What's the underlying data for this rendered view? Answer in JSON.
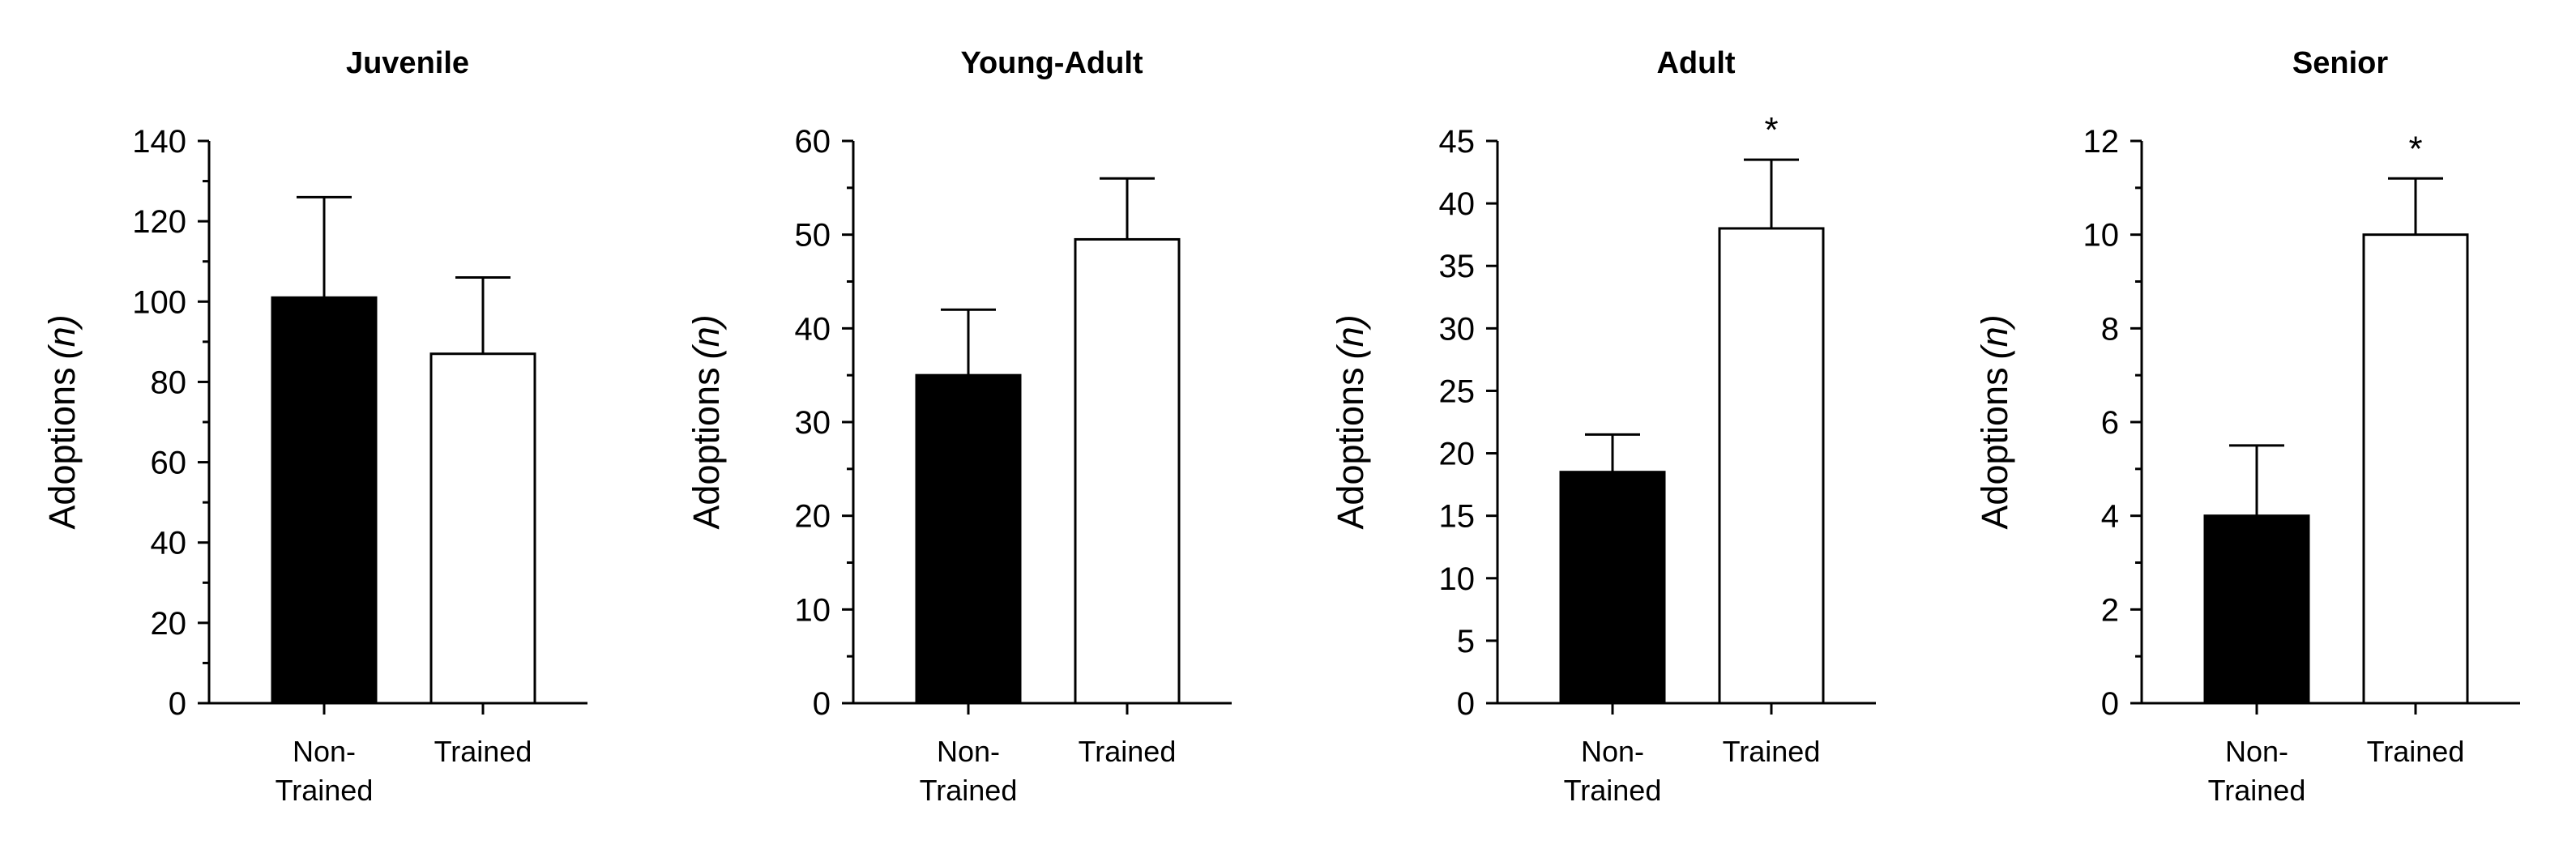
{
  "chart_data": [
    {
      "type": "bar",
      "title": "Juvenile",
      "ylabel": "Adoptions",
      "ylabel_italic": "(n)",
      "categories": [
        "Non-Trained",
        "Trained"
      ],
      "category_lines": [
        [
          "Non-",
          "Trained"
        ],
        [
          "Trained"
        ]
      ],
      "values": [
        101,
        87
      ],
      "error_upper": [
        126,
        106
      ],
      "fills": [
        "#000000",
        "#ffffff"
      ],
      "ylim": [
        0,
        140
      ],
      "major_ticks": [
        0,
        20,
        40,
        60,
        80,
        100,
        120,
        140
      ],
      "minor_step": 10,
      "significance": [
        "",
        ""
      ]
    },
    {
      "type": "bar",
      "title": "Young-Adult",
      "ylabel": "Adoptions",
      "ylabel_italic": "(n)",
      "categories": [
        "Non-Trained",
        "Trained"
      ],
      "category_lines": [
        [
          "Non-",
          "Trained"
        ],
        [
          "Trained"
        ]
      ],
      "values": [
        35,
        49.5
      ],
      "error_upper": [
        42,
        56
      ],
      "fills": [
        "#000000",
        "#ffffff"
      ],
      "ylim": [
        0,
        60
      ],
      "major_ticks": [
        0,
        10,
        20,
        30,
        40,
        50,
        60
      ],
      "minor_step": 5,
      "significance": [
        "",
        ""
      ]
    },
    {
      "type": "bar",
      "title": "Adult",
      "ylabel": "Adoptions",
      "ylabel_italic": "(n)",
      "categories": [
        "Non-Trained",
        "Trained"
      ],
      "category_lines": [
        [
          "Non-",
          "Trained"
        ],
        [
          "Trained"
        ]
      ],
      "values": [
        18.5,
        38
      ],
      "error_upper": [
        21.5,
        43.5
      ],
      "fills": [
        "#000000",
        "#ffffff"
      ],
      "ylim": [
        0,
        45
      ],
      "major_ticks": [
        0,
        5,
        10,
        15,
        20,
        25,
        30,
        35,
        40,
        45
      ],
      "minor_step": null,
      "significance": [
        "",
        "*"
      ]
    },
    {
      "type": "bar",
      "title": "Senior",
      "ylabel": "Adoptions",
      "ylabel_italic": "(n)",
      "categories": [
        "Non-Trained",
        "Trained"
      ],
      "category_lines": [
        [
          "Non-",
          "Trained"
        ],
        [
          "Trained"
        ]
      ],
      "values": [
        4,
        10
      ],
      "error_upper": [
        5.5,
        11.2
      ],
      "fills": [
        "#000000",
        "#ffffff"
      ],
      "ylim": [
        0,
        12
      ],
      "major_ticks": [
        0,
        2,
        4,
        6,
        8,
        10,
        12
      ],
      "minor_step": 1,
      "significance": [
        "",
        "*"
      ]
    }
  ]
}
